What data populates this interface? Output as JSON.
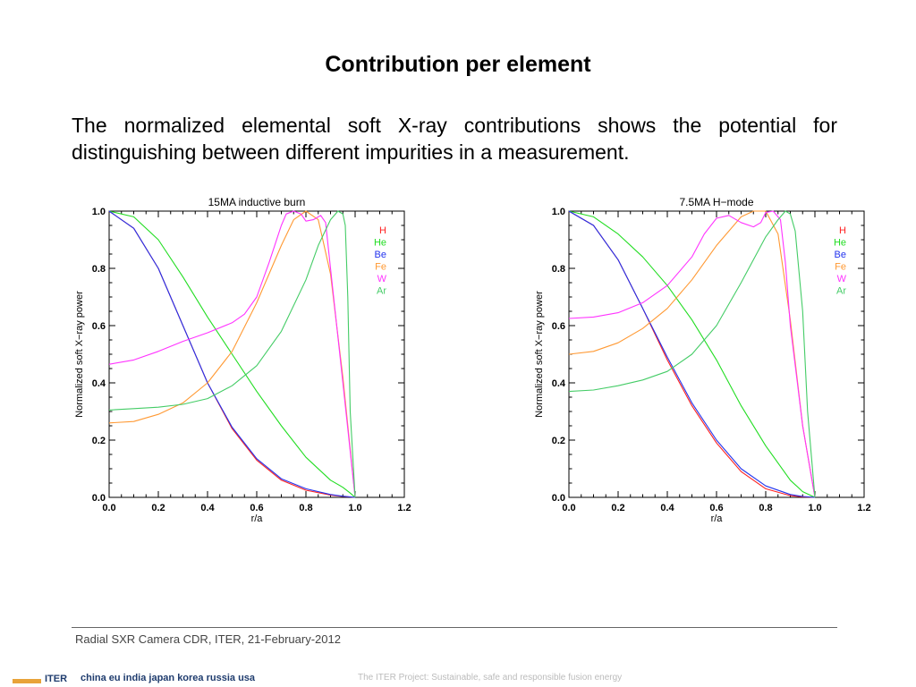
{
  "slide": {
    "title": "Contribution per element",
    "body": "The normalized elemental soft X-ray contributions shows the potential for distinguishing between different impurities in a measurement.",
    "footer": "Radial SXR Camera CDR, ITER, 21-February-2012",
    "bottom_logo": "ITER",
    "bottom_members": "china eu india japan korea russia usa",
    "bottom_tagline": "The ITER Project: Sustainable, safe and responsible fusion energy"
  },
  "chart_data": [
    {
      "type": "line",
      "title": "15MA inductive burn",
      "xlabel": "r/a",
      "ylabel": "Normalized soft X−ray power",
      "xlim": [
        0.0,
        1.2
      ],
      "ylim": [
        0.0,
        1.0
      ],
      "xticks": [
        "0.0",
        "0.2",
        "0.4",
        "0.6",
        "0.8",
        "1.0",
        "1.2"
      ],
      "yticks": [
        "0.0",
        "0.2",
        "0.4",
        "0.6",
        "0.8",
        "1.0"
      ],
      "legend_position": "top-right",
      "series": [
        {
          "name": "H",
          "color": "#ff2020",
          "x": [
            0,
            0.1,
            0.2,
            0.3,
            0.4,
            0.5,
            0.6,
            0.7,
            0.8,
            0.9,
            0.95,
            1.0
          ],
          "y": [
            1.0,
            0.94,
            0.8,
            0.6,
            0.4,
            0.24,
            0.13,
            0.06,
            0.025,
            0.008,
            0.003,
            0.0
          ]
        },
        {
          "name": "He",
          "color": "#22dd22",
          "x": [
            0,
            0.1,
            0.2,
            0.3,
            0.4,
            0.5,
            0.6,
            0.7,
            0.8,
            0.9,
            0.95,
            0.98,
            1.0
          ],
          "y": [
            1.0,
            0.98,
            0.9,
            0.77,
            0.63,
            0.5,
            0.37,
            0.25,
            0.14,
            0.06,
            0.035,
            0.015,
            0.0
          ]
        },
        {
          "name": "Be",
          "color": "#2233ee",
          "x": [
            0,
            0.1,
            0.2,
            0.3,
            0.4,
            0.5,
            0.6,
            0.7,
            0.8,
            0.9,
            0.95,
            1.0
          ],
          "y": [
            1.0,
            0.94,
            0.8,
            0.6,
            0.4,
            0.245,
            0.135,
            0.065,
            0.03,
            0.01,
            0.004,
            0.0
          ]
        },
        {
          "name": "Fe",
          "color": "#ff9933",
          "x": [
            0,
            0.1,
            0.2,
            0.3,
            0.4,
            0.5,
            0.6,
            0.7,
            0.75,
            0.8,
            0.85,
            0.9,
            0.95,
            1.0
          ],
          "y": [
            0.26,
            0.265,
            0.29,
            0.33,
            0.4,
            0.51,
            0.68,
            0.88,
            0.97,
            1.0,
            0.97,
            0.78,
            0.42,
            0.0
          ]
        },
        {
          "name": "W",
          "color": "#ff33ff",
          "x": [
            0,
            0.1,
            0.2,
            0.3,
            0.4,
            0.5,
            0.55,
            0.6,
            0.65,
            0.7,
            0.72,
            0.75,
            0.78,
            0.8,
            0.83,
            0.86,
            0.88,
            0.9,
            0.95,
            1.0
          ],
          "y": [
            0.465,
            0.48,
            0.51,
            0.545,
            0.575,
            0.61,
            0.64,
            0.7,
            0.82,
            0.95,
            0.99,
            1.0,
            0.99,
            0.965,
            0.97,
            0.985,
            0.96,
            0.8,
            0.4,
            0.0
          ]
        },
        {
          "name": "Ar",
          "color": "#44cc66",
          "x": [
            0,
            0.1,
            0.2,
            0.3,
            0.4,
            0.5,
            0.6,
            0.7,
            0.8,
            0.85,
            0.9,
            0.93,
            0.95,
            0.96,
            0.97,
            0.98,
            1.0
          ],
          "y": [
            0.305,
            0.31,
            0.315,
            0.325,
            0.345,
            0.39,
            0.46,
            0.58,
            0.76,
            0.88,
            0.97,
            1.0,
            0.99,
            0.95,
            0.7,
            0.3,
            0.0
          ]
        }
      ]
    },
    {
      "type": "line",
      "title": "7.5MA H−mode",
      "xlabel": "r/a",
      "ylabel": "Normalized soft X−ray power",
      "xlim": [
        0.0,
        1.2
      ],
      "ylim": [
        0.0,
        1.0
      ],
      "xticks": [
        "0.0",
        "0.2",
        "0.4",
        "0.6",
        "0.8",
        "1.0",
        "1.2"
      ],
      "yticks": [
        "0.0",
        "0.2",
        "0.4",
        "0.6",
        "0.8",
        "1.0"
      ],
      "legend_position": "top-right",
      "series": [
        {
          "name": "H",
          "color": "#ff2020",
          "x": [
            0,
            0.1,
            0.2,
            0.3,
            0.4,
            0.5,
            0.6,
            0.7,
            0.8,
            0.9,
            0.95,
            1.0
          ],
          "y": [
            1.0,
            0.95,
            0.83,
            0.66,
            0.48,
            0.32,
            0.19,
            0.09,
            0.03,
            0.006,
            0.002,
            0.0
          ]
        },
        {
          "name": "He",
          "color": "#22dd22",
          "x": [
            0,
            0.1,
            0.2,
            0.3,
            0.4,
            0.5,
            0.6,
            0.7,
            0.8,
            0.9,
            0.95,
            1.0
          ],
          "y": [
            1.0,
            0.98,
            0.92,
            0.84,
            0.74,
            0.62,
            0.48,
            0.32,
            0.18,
            0.06,
            0.02,
            0.0
          ]
        },
        {
          "name": "Be",
          "color": "#2233ee",
          "x": [
            0,
            0.1,
            0.2,
            0.3,
            0.4,
            0.5,
            0.6,
            0.7,
            0.8,
            0.9,
            0.95,
            1.0
          ],
          "y": [
            1.0,
            0.95,
            0.83,
            0.66,
            0.49,
            0.33,
            0.2,
            0.1,
            0.04,
            0.01,
            0.003,
            0.0
          ]
        },
        {
          "name": "Fe",
          "color": "#ff9933",
          "x": [
            0,
            0.1,
            0.2,
            0.3,
            0.4,
            0.5,
            0.6,
            0.7,
            0.75,
            0.8,
            0.85,
            0.9,
            0.95,
            1.0
          ],
          "y": [
            0.5,
            0.51,
            0.54,
            0.59,
            0.66,
            0.76,
            0.88,
            0.98,
            1.0,
            1.0,
            0.92,
            0.62,
            0.25,
            0.0
          ]
        },
        {
          "name": "W",
          "color": "#ff33ff",
          "x": [
            0,
            0.1,
            0.2,
            0.3,
            0.4,
            0.5,
            0.55,
            0.6,
            0.65,
            0.7,
            0.75,
            0.78,
            0.8,
            0.83,
            0.86,
            0.88,
            0.9,
            0.95,
            1.0
          ],
          "y": [
            0.625,
            0.63,
            0.645,
            0.68,
            0.74,
            0.84,
            0.92,
            0.975,
            0.985,
            0.96,
            0.945,
            0.96,
            0.995,
            1.0,
            0.97,
            0.82,
            0.6,
            0.25,
            0.0
          ]
        },
        {
          "name": "Ar",
          "color": "#44cc66",
          "x": [
            0,
            0.1,
            0.2,
            0.3,
            0.4,
            0.5,
            0.6,
            0.7,
            0.8,
            0.85,
            0.88,
            0.9,
            0.92,
            0.95,
            0.97,
            1.0
          ],
          "y": [
            0.37,
            0.375,
            0.39,
            0.41,
            0.44,
            0.5,
            0.6,
            0.75,
            0.91,
            0.97,
            1.0,
            0.99,
            0.93,
            0.65,
            0.3,
            0.0
          ]
        }
      ]
    }
  ]
}
